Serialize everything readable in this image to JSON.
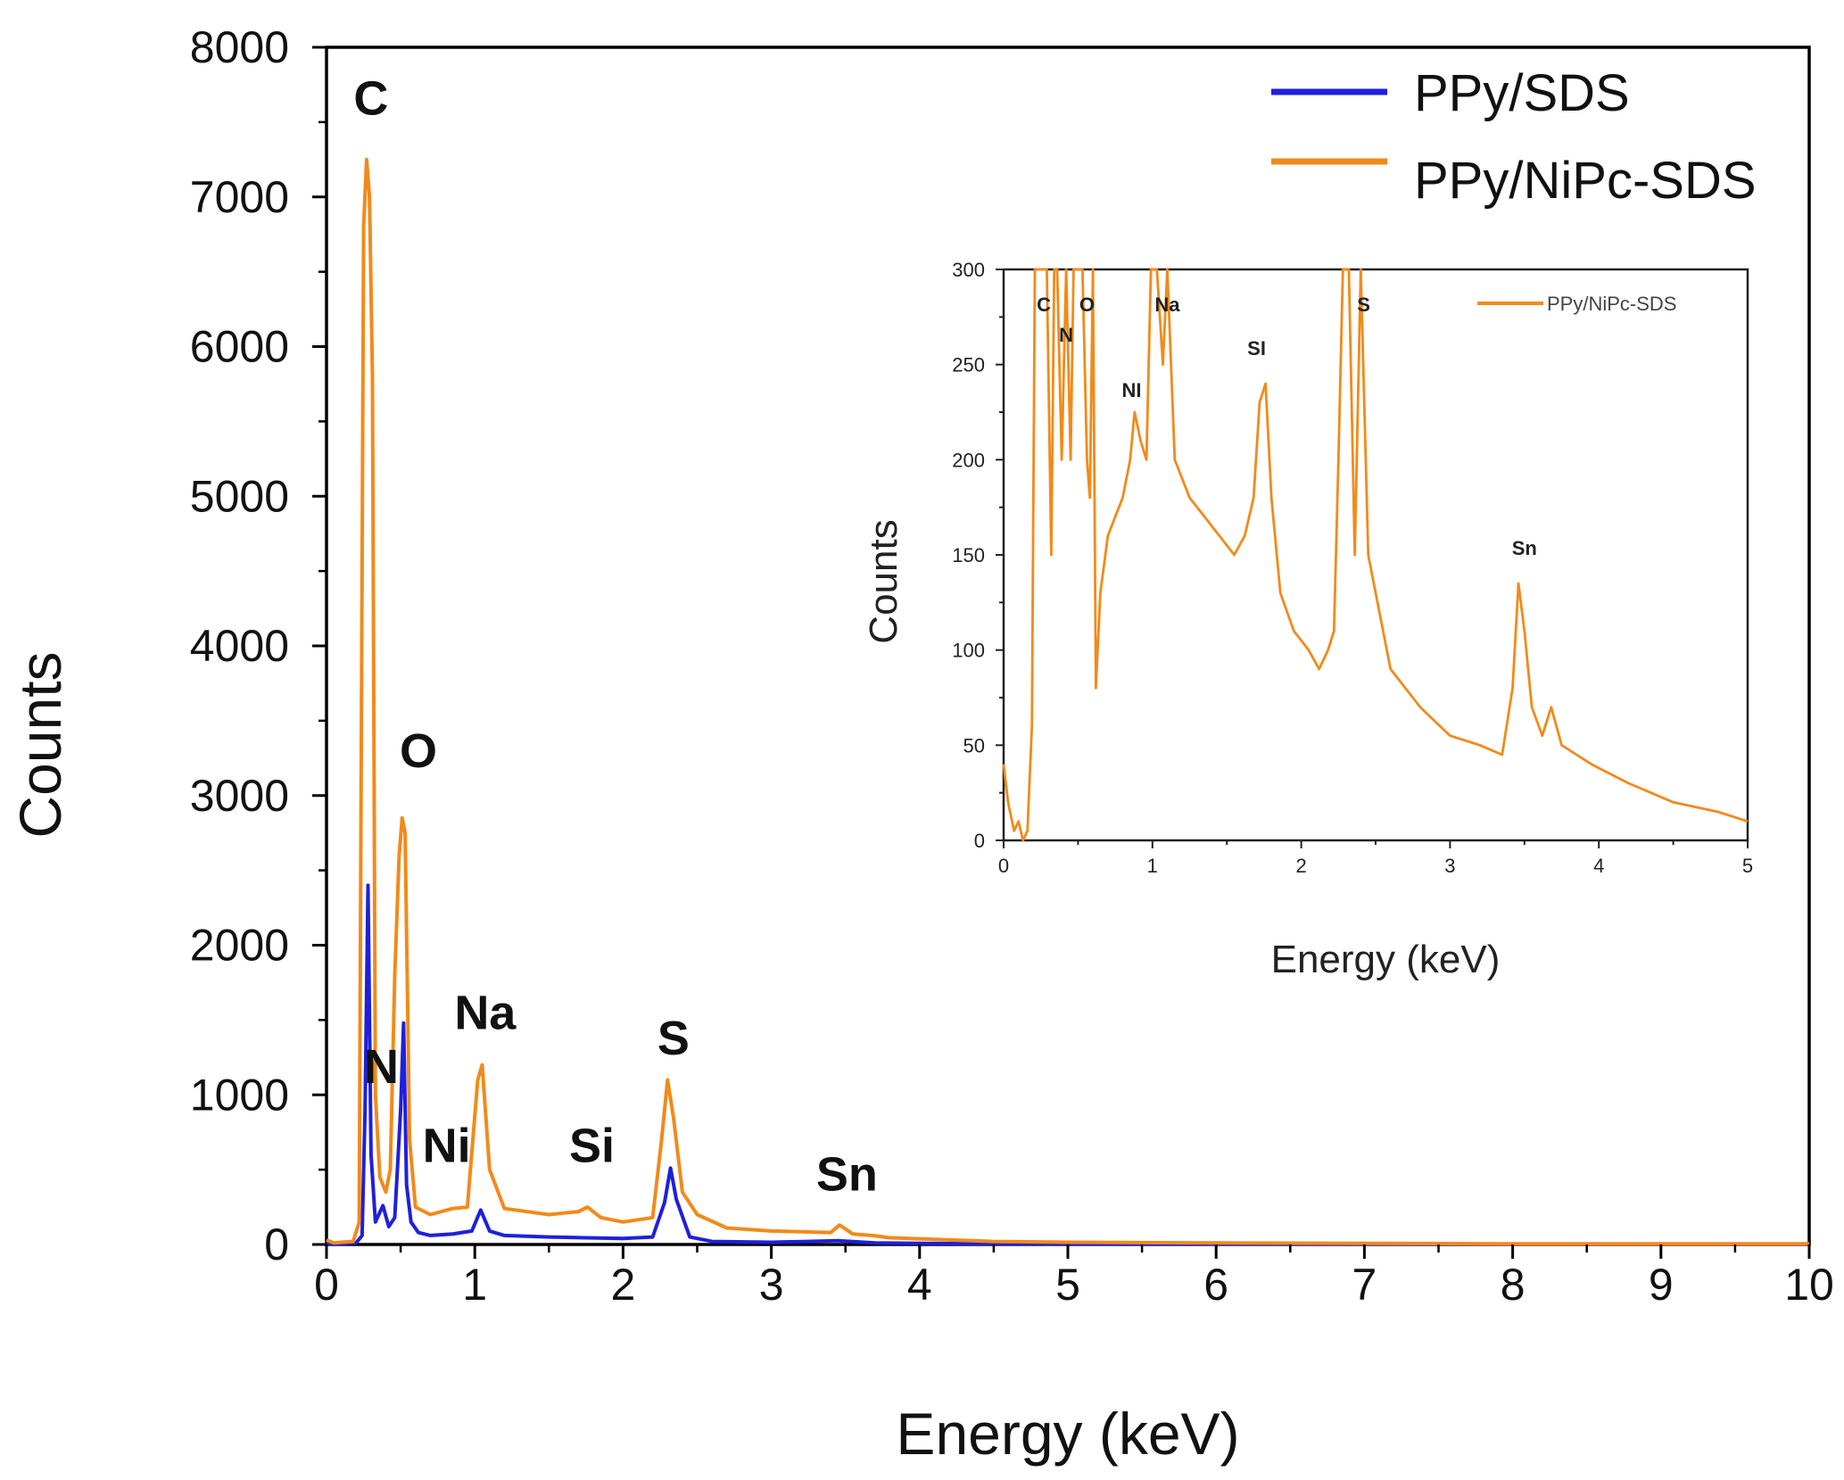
{
  "chart_data": [
    {
      "type": "line",
      "role": "main",
      "xlabel": "Energy (keV)",
      "ylabel": "Counts",
      "xlim": [
        0,
        10
      ],
      "ylim": [
        0,
        8000
      ],
      "xticks": [
        0,
        1,
        2,
        3,
        4,
        5,
        6,
        7,
        8,
        9,
        10
      ],
      "xtick_labels": [
        "0",
        "1",
        "2",
        "3",
        "4",
        "5",
        "6",
        "7",
        "8",
        "9",
        "10"
      ],
      "yticks": [
        0,
        1000,
        2000,
        3000,
        4000,
        5000,
        6000,
        7000,
        8000
      ],
      "ytick_labels": [
        "0",
        "1000",
        "2000",
        "3000",
        "4000",
        "5000",
        "6000",
        "7000",
        "8000"
      ],
      "legend_position": "top-right",
      "series": [
        {
          "name": "PPy/SDS",
          "color": "#1f1fdd",
          "x": [
            0,
            0.1,
            0.2,
            0.24,
            0.26,
            0.28,
            0.3,
            0.33,
            0.38,
            0.42,
            0.46,
            0.5,
            0.52,
            0.54,
            0.57,
            0.62,
            0.7,
            0.85,
            0.98,
            1.04,
            1.1,
            1.2,
            1.5,
            1.75,
            2.0,
            2.2,
            2.28,
            2.32,
            2.36,
            2.45,
            2.6,
            3.0,
            3.45,
            3.7,
            4.4,
            5.0,
            6.0,
            7.0,
            8.0,
            9.0,
            10.0
          ],
          "y": [
            5,
            5,
            10,
            60,
            900,
            2400,
            600,
            150,
            260,
            120,
            180,
            900,
            1480,
            400,
            150,
            80,
            60,
            70,
            90,
            230,
            90,
            60,
            50,
            45,
            40,
            50,
            280,
            510,
            300,
            50,
            20,
            15,
            25,
            10,
            5,
            3,
            3,
            3,
            3,
            3,
            3
          ]
        },
        {
          "name": "PPy/NiPc-SDS",
          "color": "#f28a1a",
          "x": [
            0,
            0.05,
            0.1,
            0.18,
            0.22,
            0.25,
            0.27,
            0.29,
            0.31,
            0.33,
            0.36,
            0.4,
            0.43,
            0.46,
            0.49,
            0.51,
            0.53,
            0.56,
            0.6,
            0.7,
            0.85,
            0.95,
            1.02,
            1.05,
            1.1,
            1.2,
            1.5,
            1.7,
            1.76,
            1.85,
            2.0,
            2.2,
            2.26,
            2.3,
            2.34,
            2.4,
            2.5,
            2.7,
            3.0,
            3.4,
            3.46,
            3.55,
            3.68,
            3.8,
            4.5,
            5.0,
            6.0,
            7.0,
            8.0,
            9.0,
            10.0
          ],
          "y": [
            30,
            10,
            15,
            20,
            150,
            6800,
            7250,
            7000,
            5800,
            1000,
            450,
            350,
            500,
            1800,
            2600,
            2850,
            2750,
            700,
            250,
            200,
            240,
            250,
            1100,
            1200,
            500,
            240,
            200,
            220,
            250,
            180,
            150,
            180,
            700,
            1100,
            850,
            350,
            200,
            110,
            90,
            80,
            130,
            70,
            60,
            45,
            20,
            15,
            10,
            8,
            5,
            5,
            5
          ]
        }
      ],
      "annotations": [
        {
          "text": "C",
          "x": 0.3,
          "y": 7550
        },
        {
          "text": "N",
          "x": 0.37,
          "y": 1080
        },
        {
          "text": "O",
          "x": 0.62,
          "y": 3190
        },
        {
          "text": "Ni",
          "x": 0.81,
          "y": 550
        },
        {
          "text": "Na",
          "x": 1.07,
          "y": 1440
        },
        {
          "text": "Si",
          "x": 1.79,
          "y": 550
        },
        {
          "text": "S",
          "x": 2.34,
          "y": 1270
        },
        {
          "text": "Sn",
          "x": 3.51,
          "y": 360
        }
      ]
    },
    {
      "type": "line",
      "role": "inset",
      "xlabel": "Energy (keV)",
      "ylabel": "Counts",
      "xlim": [
        0,
        5
      ],
      "ylim": [
        0,
        300
      ],
      "xticks": [
        0,
        1,
        2,
        3,
        4,
        5
      ],
      "xtick_labels": [
        "0",
        "1",
        "2",
        "3",
        "4",
        "5"
      ],
      "yticks": [
        0,
        50,
        100,
        150,
        200,
        250,
        300
      ],
      "ytick_labels": [
        "0",
        "50",
        "100",
        "150",
        "200",
        "250",
        "300"
      ],
      "legend_position": "top-right",
      "series": [
        {
          "name": "PPy/NiPc-SDS",
          "color": "#f28a1a",
          "x": [
            0,
            0.03,
            0.07,
            0.1,
            0.13,
            0.16,
            0.19,
            0.21,
            0.23,
            0.25,
            0.29,
            0.32,
            0.34,
            0.36,
            0.39,
            0.42,
            0.45,
            0.47,
            0.5,
            0.53,
            0.56,
            0.58,
            0.6,
            0.62,
            0.65,
            0.7,
            0.75,
            0.8,
            0.85,
            0.88,
            0.92,
            0.96,
            0.99,
            1.03,
            1.07,
            1.1,
            1.15,
            1.25,
            1.35,
            1.45,
            1.55,
            1.62,
            1.68,
            1.72,
            1.76,
            1.8,
            1.86,
            1.95,
            2.05,
            2.12,
            2.18,
            2.22,
            2.25,
            2.28,
            2.32,
            2.36,
            2.4,
            2.45,
            2.5,
            2.6,
            2.8,
            3.0,
            3.2,
            3.35,
            3.42,
            3.46,
            3.5,
            3.55,
            3.62,
            3.68,
            3.75,
            3.85,
            3.95,
            4.2,
            4.5,
            4.8,
            5.0
          ],
          "y": [
            40,
            20,
            5,
            10,
            0,
            5,
            60,
            300,
            300,
            300,
            300,
            150,
            300,
            300,
            200,
            300,
            200,
            300,
            300,
            300,
            200,
            180,
            300,
            80,
            130,
            160,
            170,
            180,
            200,
            225,
            210,
            200,
            300,
            300,
            250,
            300,
            200,
            180,
            170,
            160,
            150,
            160,
            180,
            230,
            240,
            180,
            130,
            110,
            100,
            90,
            100,
            110,
            200,
            300,
            300,
            150,
            300,
            150,
            130,
            90,
            70,
            55,
            50,
            45,
            80,
            135,
            110,
            70,
            55,
            70,
            50,
            45,
            40,
            30,
            20,
            15,
            10
          ]
        }
      ],
      "annotations": [
        {
          "text": "C",
          "x": 0.27,
          "y": 278
        },
        {
          "text": "N",
          "x": 0.42,
          "y": 262
        },
        {
          "text": "O",
          "x": 0.56,
          "y": 278
        },
        {
          "text": "Na",
          "x": 1.1,
          "y": 278
        },
        {
          "text": "NI",
          "x": 0.86,
          "y": 233
        },
        {
          "text": "SI",
          "x": 1.7,
          "y": 255
        },
        {
          "text": "S",
          "x": 2.42,
          "y": 278
        },
        {
          "text": "Sn",
          "x": 3.5,
          "y": 150
        }
      ]
    }
  ]
}
